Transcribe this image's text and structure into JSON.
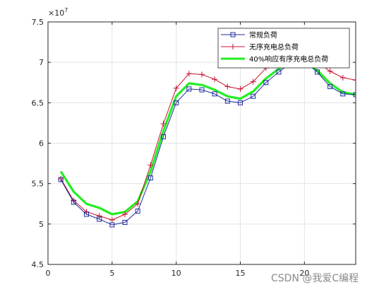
{
  "chart_data": {
    "type": "line",
    "title": "",
    "xlabel": "",
    "ylabel": "",
    "y_exponent_label": "×10",
    "y_exponent_power": "7",
    "xlim": [
      0,
      24
    ],
    "ylim": [
      4.5,
      7.5
    ],
    "x_ticks": [
      "0",
      "5",
      "10",
      "15",
      "20"
    ],
    "x_tick_values": [
      0,
      5,
      10,
      15,
      20
    ],
    "y_ticks": [
      "4.5",
      "5",
      "5.5",
      "6",
      "6.5",
      "7",
      "7.5"
    ],
    "y_tick_values": [
      4.5,
      5,
      5.5,
      6,
      6.5,
      7,
      7.5
    ],
    "grid": true,
    "legend_position": "top-right",
    "x": [
      1,
      2,
      3,
      4,
      5,
      6,
      7,
      8,
      9,
      10,
      11,
      12,
      13,
      14,
      15,
      16,
      17,
      18,
      19,
      20,
      21,
      22,
      23,
      24
    ],
    "series": [
      {
        "name": "常规负荷",
        "color": "#1f2c9c",
        "marker": "square",
        "values": [
          5.55,
          5.27,
          5.12,
          5.06,
          4.99,
          5.02,
          5.16,
          5.57,
          6.08,
          6.5,
          6.67,
          6.66,
          6.61,
          6.52,
          6.5,
          6.58,
          6.75,
          6.88,
          7.0,
          7.02,
          6.88,
          6.7,
          6.61,
          6.6
        ]
      },
      {
        "name": "无序充电总负荷",
        "color": "#c8102e",
        "marker": "plus",
        "values": [
          5.56,
          5.29,
          5.15,
          5.1,
          5.05,
          5.12,
          5.25,
          5.73,
          6.24,
          6.68,
          6.86,
          6.85,
          6.79,
          6.7,
          6.67,
          6.76,
          6.93,
          7.01,
          7.05,
          7.07,
          7.0,
          6.89,
          6.81,
          6.78
        ]
      },
      {
        "name": "40%响应有序充电总负荷",
        "color": "#22ee22",
        "marker": "none",
        "values": [
          5.65,
          5.4,
          5.25,
          5.2,
          5.12,
          5.15,
          5.28,
          5.65,
          6.15,
          6.58,
          6.74,
          6.72,
          6.66,
          6.58,
          6.55,
          6.64,
          6.8,
          6.92,
          7.0,
          7.0,
          6.9,
          6.74,
          6.63,
          6.6
        ]
      }
    ]
  },
  "watermark": "CSDN @我爱C编程"
}
